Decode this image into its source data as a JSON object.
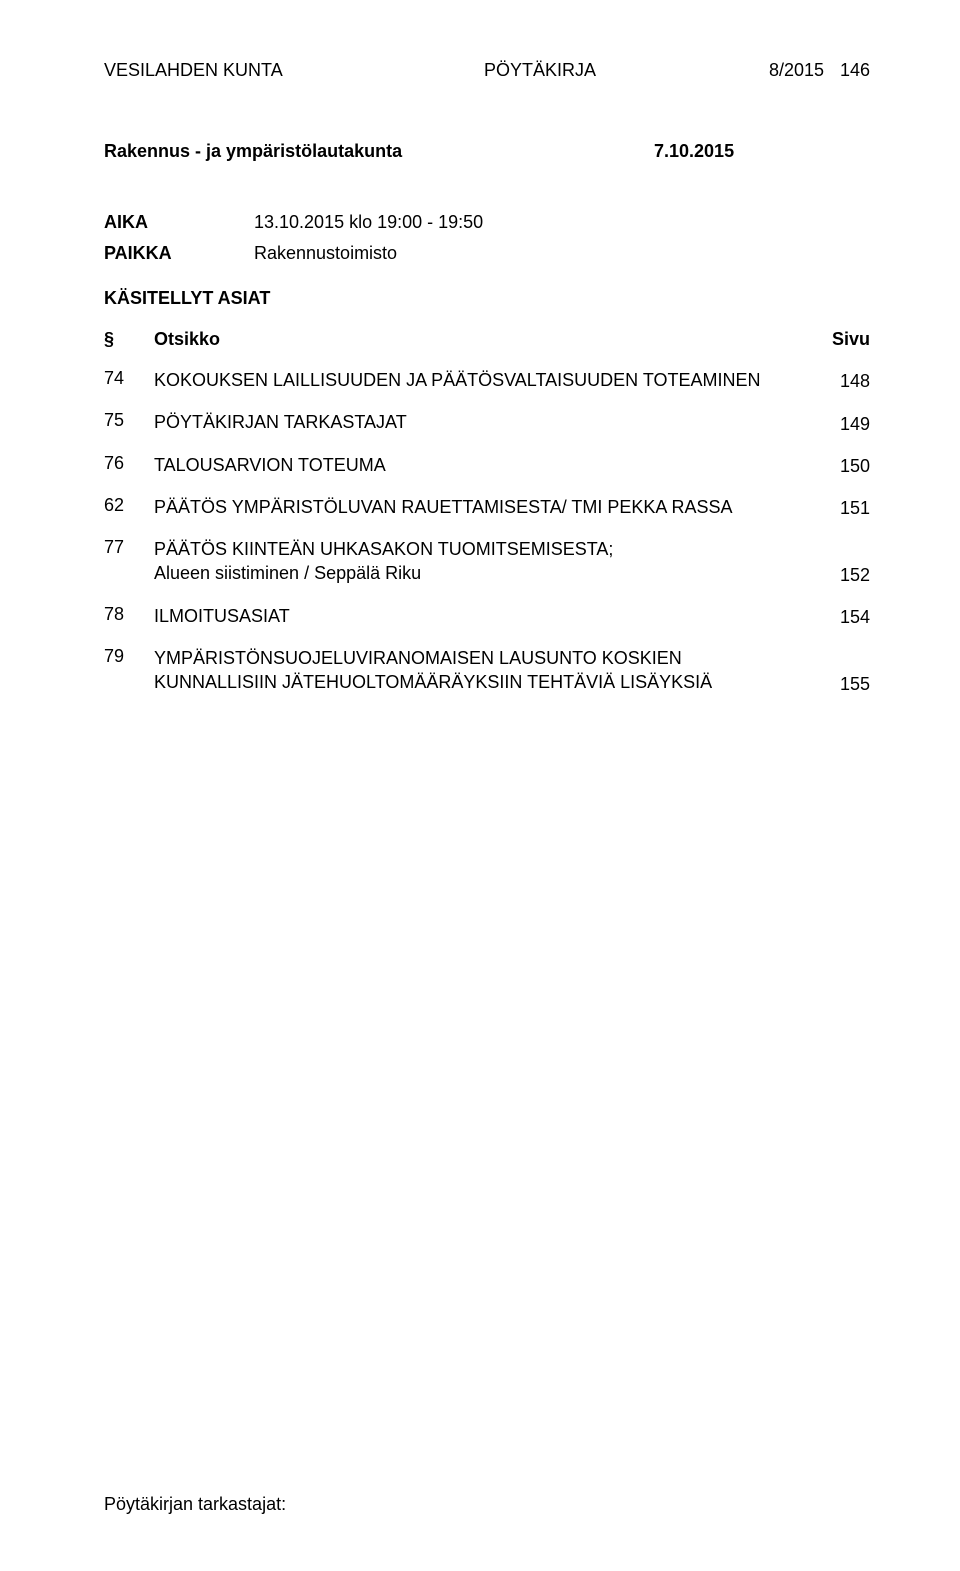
{
  "header": {
    "org": "VESILAHDEN KUNTA",
    "docType": "PÖYTÄKIRJA",
    "issue": "8/2015",
    "pageNo": "146"
  },
  "committee": {
    "name": "Rakennus - ja ympäristölautakunta",
    "date": "7.10.2015"
  },
  "meta": {
    "timeLabel": "AIKA",
    "timeValue": "13.10.2015 klo 19:00 - 19:50",
    "placeLabel": "PAIKKA",
    "placeValue": "Rakennustoimisto"
  },
  "sectionTitle": "KÄSITELLYT ASIAT",
  "columns": {
    "section": "§",
    "title": "Otsikko",
    "page": "Sivu"
  },
  "items": [
    {
      "sec": "74",
      "title": "KOKOUKSEN LAILLISUUDEN JA PÄÄTÖSVALTAISUUDEN TOTEAMINEN",
      "page": "148"
    },
    {
      "sec": "75",
      "title": "PÖYTÄKIRJAN TARKASTAJAT",
      "page": "149"
    },
    {
      "sec": "76",
      "title": "TALOUSARVION TOTEUMA",
      "page": "150"
    },
    {
      "sec": "62",
      "title": "PÄÄTÖS YMPÄRISTÖLUVAN RAUETTAMISESTA/ TMI PEKKA RASSA",
      "page": "151"
    },
    {
      "sec": "77",
      "title": "PÄÄTÖS KIINTEÄN UHKASAKON TUOMITSEMISESTA;\nAlueen siistiminen / Seppälä Riku",
      "page": "152"
    },
    {
      "sec": "78",
      "title": "ILMOITUSASIAT",
      "page": "154"
    },
    {
      "sec": "79",
      "title": "YMPÄRISTÖNSUOJELUVIRANOMAISEN LAUSUNTO KOSKIEN KUNNALLISIIN JÄTEHUOLTOMÄÄRÄYKSIIN TEHTÄVIÄ LISÄYKSIÄ",
      "page": "155"
    }
  ],
  "footer": "Pöytäkirjan tarkastajat:"
}
